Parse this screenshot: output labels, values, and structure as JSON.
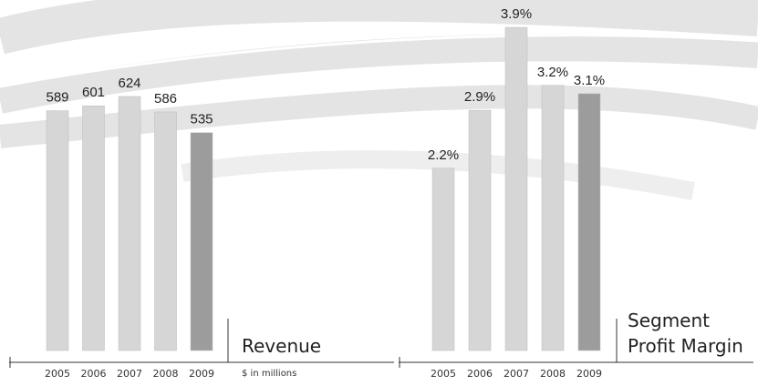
{
  "chart_data": [
    {
      "type": "bar",
      "title": "Revenue",
      "subtitle": "$ in millions",
      "categories": [
        "2005",
        "2006",
        "2007",
        "2008",
        "2009"
      ],
      "values": [
        589,
        601,
        624,
        586,
        535
      ],
      "colors": [
        "#d6d6d6",
        "#d6d6d6",
        "#d6d6d6",
        "#d6d6d6",
        "#9c9c9c"
      ],
      "ylim": [
        0,
        700
      ]
    },
    {
      "type": "bar",
      "title": "Segment Profit Margin",
      "categories": [
        "2005",
        "2006",
        "2007",
        "2008",
        "2009"
      ],
      "values": [
        2.2,
        2.9,
        3.9,
        3.2,
        3.1
      ],
      "value_labels": [
        "2.2%",
        "2.9%",
        "3.9%",
        "3.2%",
        "3.1%"
      ],
      "colors": [
        "#d6d6d6",
        "#d6d6d6",
        "#d6d6d6",
        "#d6d6d6",
        "#9c9c9c"
      ],
      "ylim": [
        0,
        4
      ]
    }
  ]
}
